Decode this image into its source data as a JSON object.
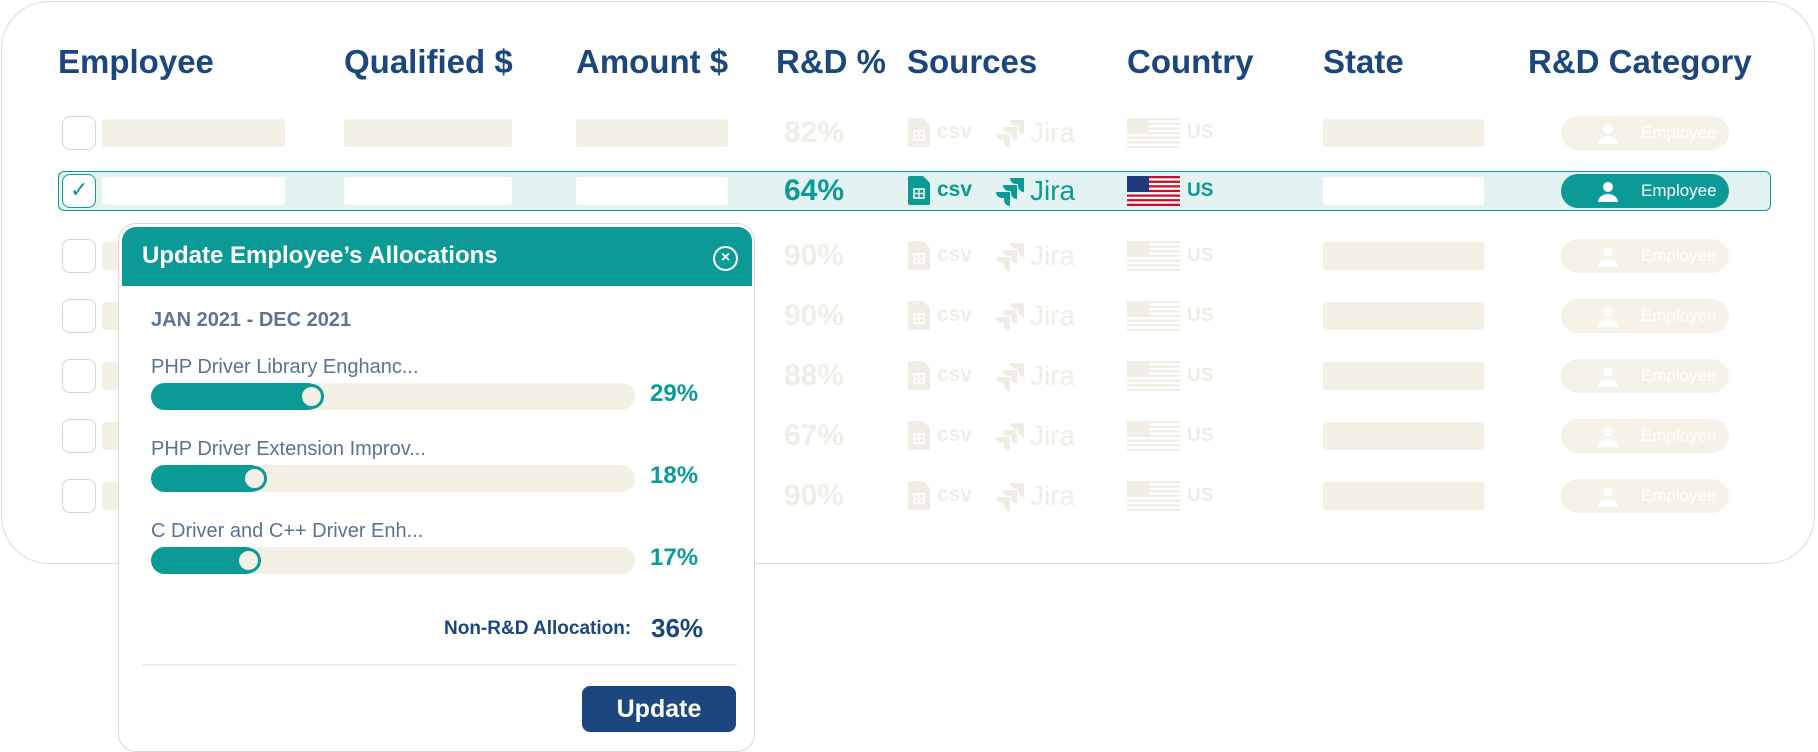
{
  "table": {
    "columns": [
      {
        "key": "employee",
        "label": "Employee"
      },
      {
        "key": "qualified",
        "label": "Qualified $"
      },
      {
        "key": "amount",
        "label": "Amount $"
      },
      {
        "key": "rd_pct",
        "label": "R&D %"
      },
      {
        "key": "sources",
        "label": "Sources"
      },
      {
        "key": "country",
        "label": "Country"
      },
      {
        "key": "state",
        "label": "State"
      },
      {
        "key": "rd_category",
        "label": "R&D Category"
      }
    ],
    "rows": [
      {
        "selected": false,
        "rd_pct": "82%",
        "source_csv": "csv",
        "source_jira": "Jira",
        "country": "US",
        "category": "Employee"
      },
      {
        "selected": true,
        "rd_pct": "64%",
        "source_csv": "csv",
        "source_jira": "Jira",
        "country": "US",
        "category": "Employee"
      },
      {
        "selected": false,
        "rd_pct": "90%",
        "source_csv": "csv",
        "source_jira": "Jira",
        "country": "US",
        "category": "Employee"
      },
      {
        "selected": false,
        "rd_pct": "90%",
        "source_csv": "csv",
        "source_jira": "Jira",
        "country": "US",
        "category": "Employee"
      },
      {
        "selected": false,
        "rd_pct": "88%",
        "source_csv": "csv",
        "source_jira": "Jira",
        "country": "US",
        "category": "Employee"
      },
      {
        "selected": false,
        "rd_pct": "67%",
        "source_csv": "csv",
        "source_jira": "Jira",
        "country": "US",
        "category": "Employee"
      },
      {
        "selected": false,
        "rd_pct": "90%",
        "source_csv": "csv",
        "source_jira": "Jira",
        "country": "US",
        "category": "Employee"
      }
    ],
    "check_mark": "✓"
  },
  "modal": {
    "title": "Update Employee’s Allocations",
    "close_symbol": "×",
    "period": "JAN 2021 - DEC 2021",
    "allocations": [
      {
        "label": "PHP Driver Library Enghanc...",
        "percent_label": "29%",
        "fraction": 0.29
      },
      {
        "label": "PHP Driver Extension Improv...",
        "percent_label": "18%",
        "fraction": 0.18
      },
      {
        "label": "C Driver and C++ Driver Enh...",
        "percent_label": "17%",
        "fraction": 0.17
      }
    ],
    "non_rd_label": "Non-R&D Allocation:",
    "non_rd_value": "36%",
    "update_label": "Update"
  },
  "colors": {
    "accent": "#0b9a96",
    "navy": "#1b477e",
    "placeholder": "#f3f0e5"
  },
  "icons": {
    "sheet": "spreadsheet-icon",
    "jira": "jira-logo-icon",
    "flag": "us-flag-icon",
    "user": "user-icon",
    "check": "checkmark-icon",
    "close": "close-icon"
  }
}
